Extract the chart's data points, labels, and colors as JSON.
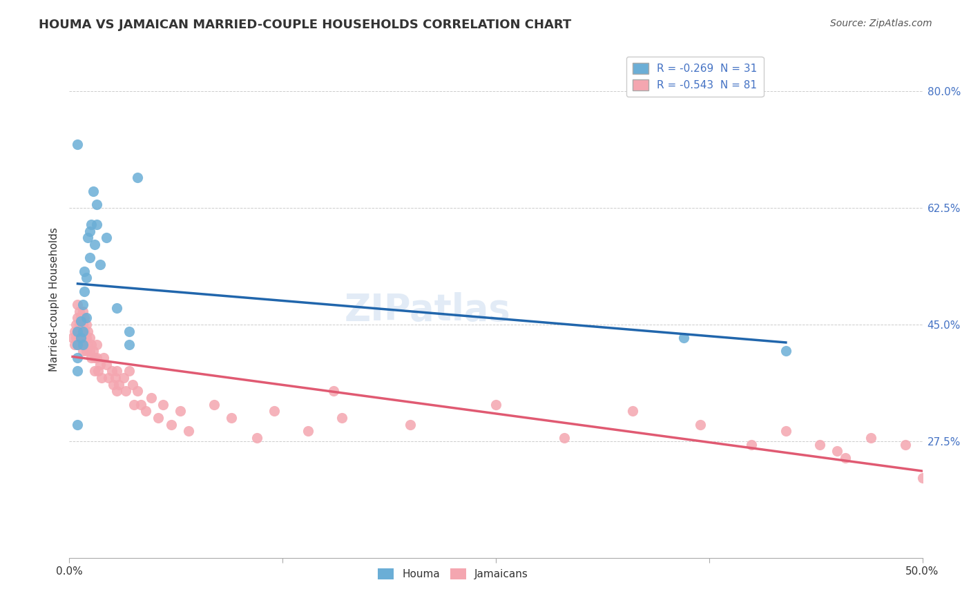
{
  "title": "HOUMA VS JAMAICAN MARRIED-COUPLE HOUSEHOLDS CORRELATION CHART",
  "source": "Source: ZipAtlas.com",
  "ylabel": "Married-couple Households",
  "ytick_labels": [
    "80.0%",
    "62.5%",
    "45.0%",
    "27.5%"
  ],
  "ytick_values": [
    0.8,
    0.625,
    0.45,
    0.275
  ],
  "xlim": [
    0.0,
    0.5
  ],
  "ylim": [
    0.1,
    0.875
  ],
  "legend_blue": "R = -0.269  N = 31",
  "legend_pink": "R = -0.543  N = 81",
  "blue_color": "#6baed6",
  "pink_color": "#f4a6b0",
  "trendline_blue": "#2166ac",
  "trendline_pink": "#e05a72",
  "watermark": "ZIPatlas",
  "houma_x": [
    0.005,
    0.005,
    0.005,
    0.005,
    0.005,
    0.007,
    0.007,
    0.008,
    0.008,
    0.008,
    0.009,
    0.009,
    0.01,
    0.01,
    0.011,
    0.012,
    0.012,
    0.013,
    0.014,
    0.015,
    0.016,
    0.016,
    0.018,
    0.022,
    0.028,
    0.035,
    0.035,
    0.04,
    0.36,
    0.42,
    0.005
  ],
  "houma_y": [
    0.44,
    0.42,
    0.4,
    0.38,
    0.3,
    0.455,
    0.43,
    0.44,
    0.42,
    0.48,
    0.5,
    0.53,
    0.46,
    0.52,
    0.58,
    0.59,
    0.55,
    0.6,
    0.65,
    0.57,
    0.6,
    0.63,
    0.54,
    0.58,
    0.475,
    0.44,
    0.42,
    0.67,
    0.43,
    0.41,
    0.72
  ],
  "jamaican_x": [
    0.002,
    0.003,
    0.003,
    0.004,
    0.004,
    0.005,
    0.005,
    0.005,
    0.005,
    0.006,
    0.006,
    0.006,
    0.007,
    0.007,
    0.007,
    0.008,
    0.008,
    0.008,
    0.008,
    0.009,
    0.009,
    0.01,
    0.01,
    0.01,
    0.011,
    0.011,
    0.012,
    0.012,
    0.013,
    0.013,
    0.014,
    0.015,
    0.015,
    0.016,
    0.016,
    0.017,
    0.018,
    0.019,
    0.02,
    0.022,
    0.023,
    0.025,
    0.026,
    0.027,
    0.028,
    0.028,
    0.029,
    0.032,
    0.033,
    0.035,
    0.037,
    0.038,
    0.04,
    0.042,
    0.045,
    0.048,
    0.052,
    0.055,
    0.06,
    0.065,
    0.07,
    0.085,
    0.095,
    0.11,
    0.12,
    0.14,
    0.155,
    0.16,
    0.2,
    0.25,
    0.29,
    0.33,
    0.37,
    0.4,
    0.42,
    0.44,
    0.45,
    0.455,
    0.47,
    0.49,
    0.5
  ],
  "jamaican_y": [
    0.43,
    0.44,
    0.42,
    0.45,
    0.43,
    0.48,
    0.46,
    0.44,
    0.42,
    0.47,
    0.45,
    0.43,
    0.46,
    0.44,
    0.42,
    0.47,
    0.45,
    0.43,
    0.41,
    0.46,
    0.44,
    0.45,
    0.43,
    0.41,
    0.44,
    0.42,
    0.43,
    0.41,
    0.42,
    0.4,
    0.41,
    0.4,
    0.38,
    0.42,
    0.4,
    0.38,
    0.39,
    0.37,
    0.4,
    0.39,
    0.37,
    0.38,
    0.36,
    0.37,
    0.38,
    0.35,
    0.36,
    0.37,
    0.35,
    0.38,
    0.36,
    0.33,
    0.35,
    0.33,
    0.32,
    0.34,
    0.31,
    0.33,
    0.3,
    0.32,
    0.29,
    0.33,
    0.31,
    0.28,
    0.32,
    0.29,
    0.35,
    0.31,
    0.3,
    0.33,
    0.28,
    0.32,
    0.3,
    0.27,
    0.29,
    0.27,
    0.26,
    0.25,
    0.28,
    0.27,
    0.22
  ]
}
